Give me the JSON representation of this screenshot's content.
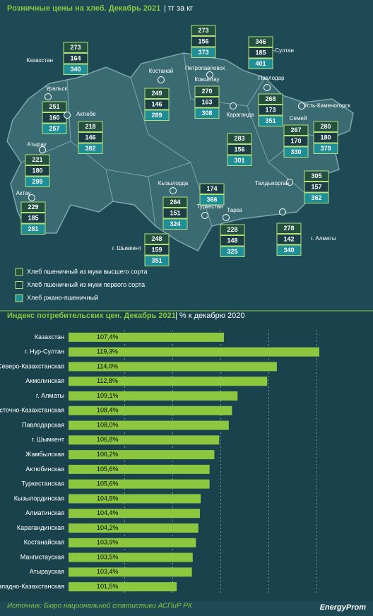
{
  "map": {
    "title": "Розничные цены на хлеб. Декабрь 2021",
    "unit": "| тг за кг",
    "legend": [
      "Хлеб пшеничный из муки высшего сорта",
      "Хлеб пшеничный из муки первого сорта",
      "Хлеб ржано-пшеничный"
    ],
    "regions": [
      {
        "name": "Казахстан",
        "values": [
          273,
          164,
          340
        ]
      },
      {
        "name": "Петропавловск",
        "values": [
          273,
          156,
          373
        ]
      },
      {
        "name": "г. Нур-Султан",
        "values": [
          346,
          185,
          401
        ]
      },
      {
        "name": "Костанай",
        "values": [
          249,
          146,
          289
        ]
      },
      {
        "name": "Кокшетау",
        "values": [
          270,
          163,
          308
        ]
      },
      {
        "name": "Павлодар",
        "values": [
          268,
          173,
          351
        ]
      },
      {
        "name": "Уральск",
        "values": [
          251,
          160,
          257
        ]
      },
      {
        "name": "Актюбе",
        "values": [
          218,
          146,
          382
        ]
      },
      {
        "name": "Караганда",
        "values": [
          283,
          156,
          301
        ]
      },
      {
        "name": "Семей",
        "values": [
          267,
          170,
          330
        ]
      },
      {
        "name": "Усть-Каменогорск",
        "values": [
          280,
          180,
          379
        ]
      },
      {
        "name": "Атырау",
        "values": [
          221,
          180,
          299
        ]
      },
      {
        "name": "Талдыкорган",
        "values": [
          305,
          157,
          362
        ]
      },
      {
        "name": "Кызылорда",
        "values": [
          264,
          151,
          324
        ]
      },
      {
        "name": "Туркестан",
        "values": [
          null,
          174,
          366
        ]
      },
      {
        "name": "Актау",
        "values": [
          229,
          185,
          281
        ]
      },
      {
        "name": "Тараз",
        "values": [
          228,
          148,
          325
        ]
      },
      {
        "name": "г. Шымкент",
        "values": [
          248,
          159,
          351
        ]
      },
      {
        "name": "г. Алматы",
        "values": [
          278,
          142,
          340
        ]
      }
    ]
  },
  "chart_data": {
    "type": "hbar",
    "title": "Индекс потребительских цен. Декабрь 2021",
    "subtitle": "| % к декабрю 2020",
    "categories": [
      "Казахстан",
      "г. Нур-Султан",
      "Северо-Казахстанская",
      "Акмолинская",
      "г. Алматы",
      "Восточно-Казахстанская",
      "Павлодарская",
      "г. Шымкент",
      "Жамбылская",
      "Актюбинская",
      "Туркестанская",
      "Кызылординская",
      "Алматинская",
      "Карагандинская",
      "Костанайская",
      "Мангистауская",
      "Атырауская",
      "Западно-Казахстанская"
    ],
    "values": [
      107.4,
      119.3,
      114.0,
      112.8,
      109.1,
      108.4,
      108.0,
      106.8,
      106.2,
      105.6,
      105.6,
      104.5,
      104.4,
      104.2,
      103.9,
      103.5,
      103.4,
      101.5
    ],
    "value_labels": [
      "107,4%",
      "119,3%",
      "114,0%",
      "112,8%",
      "109,1%",
      "108,4%",
      "108,0%",
      "106,8%",
      "106,2%",
      "105,6%",
      "105,6%",
      "104,5%",
      "104,4%",
      "104,2%",
      "103,9%",
      "103,5%",
      "103,4%",
      "101,5%"
    ],
    "color": "#8dc63f",
    "xlim": [
      88,
      126
    ],
    "xticks": [
      95,
      101,
      107,
      113,
      119
    ],
    "grid": true
  },
  "source": "Источник: Бюро национальной статистики АСПиР РК",
  "logo": "EnergyProm"
}
